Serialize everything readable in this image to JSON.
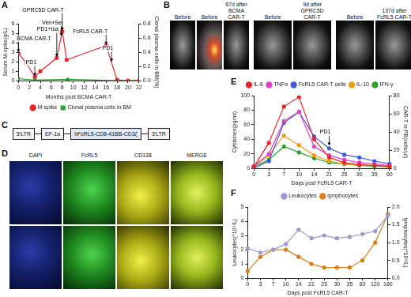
{
  "chart_data": [
    {
      "type": "line",
      "title": "A",
      "x_label": "Months post BCMA CAR-T",
      "y_label": "Serum M-spike(g/L)",
      "y2_label": "Clonal plasma cells in BM(%)",
      "xlim": [
        0,
        22
      ],
      "xticks": [
        0,
        2,
        4,
        6,
        8,
        10,
        12,
        14,
        16,
        18,
        20,
        22
      ],
      "ylim": [
        0,
        6
      ],
      "yticks": [
        0,
        1,
        2,
        3,
        4,
        5,
        6
      ],
      "y2lim": [
        0,
        0.8
      ],
      "y2ticks": [
        {
          "value": 0,
          "label": "0.0"
        },
        0.2,
        0.4,
        0.6,
        0.8
      ],
      "grid": false,
      "legend": "bottom",
      "series": [
        {
          "name": "M-spike",
          "color": "#e3262f",
          "marker": "circle",
          "line_style": "solid",
          "x": [
            0,
            1.5,
            3,
            4,
            7,
            8,
            8.8,
            16,
            18,
            20,
            22
          ],
          "values": [
            2.9,
            1.8,
            0.4,
            1.0,
            2.4,
            5.2,
            2.2,
            3.7,
            0.1,
            0,
            0
          ]
        },
        {
          "name": "Clonal plasma cells in BM",
          "color": "#2ca02c",
          "marker": "square",
          "line_style": "solid",
          "axis": "y2",
          "x": [
            0,
            3,
            9,
            18,
            20,
            22
          ],
          "values": [
            0.03,
            0.01,
            0.02,
            0,
            0,
            0
          ]
        }
      ],
      "annotations": [
        {
          "text": "BCMA CAR-T",
          "x": 0,
          "y": 2.9
        },
        {
          "text": "PD1",
          "x": 3,
          "y": 0.4
        },
        {
          "text": "PD1+Isa",
          "x": 7,
          "y": 2.4
        },
        {
          "text": "Ven+Sel",
          "x": 7.8,
          "y": 4.6
        },
        {
          "text": "GPRC5D CAR-T",
          "x": 8,
          "y": 5.2
        },
        {
          "text": "FcRL5 CAR-T",
          "x": 16,
          "y": 3.7
        },
        {
          "text": "PD1",
          "x": 17,
          "y": 1.9
        }
      ]
    },
    {
      "type": "line",
      "title": "E",
      "x_label": "Days post FcRL5 CAR-T",
      "y_label": "Cytokines(pg/ml)",
      "y2_label": "CAR-T in PB(cells/μl)",
      "categories": [
        0,
        3,
        7,
        10,
        14,
        21,
        25,
        30,
        35,
        60
      ],
      "ylim": [
        0,
        100
      ],
      "yticks": [
        0,
        20,
        40,
        60,
        80,
        100
      ],
      "y2lim": [
        0,
        80
      ],
      "y2ticks": [
        0,
        20,
        40,
        60,
        80
      ],
      "grid": false,
      "legend": "top",
      "series": [
        {
          "name": "IL-6",
          "color": "#e8262a",
          "marker": "circle",
          "line_style": "solid",
          "values": [
            2,
            35,
            85,
            98,
            40,
            15,
            8,
            5,
            4,
            3
          ]
        },
        {
          "name": "TNFα",
          "color": "#e040c8",
          "marker": "circle",
          "line_style": "solid",
          "values": [
            3,
            20,
            65,
            78,
            30,
            18,
            12,
            8,
            6,
            4
          ]
        },
        {
          "name": "FcRL5 CAR-T cells",
          "color": "#3a5bd9",
          "marker": "circle",
          "line_style": "solid",
          "axis": "y2",
          "values": [
            0,
            8,
            50,
            62,
            35,
            22,
            15,
            12,
            8,
            5
          ]
        },
        {
          "name": "IL-10",
          "color": "#f39c12",
          "marker": "circle",
          "line_style": "solid",
          "values": [
            2,
            18,
            45,
            32,
            18,
            10,
            6,
            5,
            4,
            3
          ]
        },
        {
          "name": "IFN-γ",
          "color": "#2e9e2e",
          "marker": "circle",
          "line_style": "solid",
          "values": [
            2,
            12,
            30,
            22,
            14,
            8,
            6,
            4,
            3,
            2
          ]
        }
      ],
      "annotations": [
        {
          "text": "PD1",
          "x": 21,
          "y": 30
        }
      ]
    },
    {
      "type": "line",
      "title": "F",
      "x_label": "Days post FcRL5 CAR-T",
      "y_label": "Leukocytes(*10⁹/L)",
      "y2_label": "lymphocytes(*10⁹/L)",
      "categories": [
        0,
        3,
        7,
        10,
        14,
        21,
        25,
        30,
        35,
        60,
        120,
        180
      ],
      "ylim": [
        0,
        5
      ],
      "yticks": [
        0,
        1,
        2,
        3,
        4,
        5
      ],
      "y2lim": [
        0,
        2
      ],
      "y2ticks": [
        {
          "value": 0,
          "label": "0.0"
        },
        0.5,
        {
          "value": 1,
          "label": "1.0"
        },
        1.5,
        {
          "value": 2,
          "label": "2.0"
        }
      ],
      "grid": false,
      "legend": "top",
      "series": [
        {
          "name": "Leukocytes",
          "color": "#9a9ad0",
          "marker": "circle",
          "line_style": "solid",
          "values": [
            2.1,
            1.8,
            2.0,
            2.4,
            3.4,
            2.8,
            3.0,
            2.8,
            2.9,
            3.1,
            3.3,
            4.4
          ]
        },
        {
          "name": "lymphocytes",
          "color": "#d97e1b",
          "marker": "circle",
          "line_style": "solid",
          "axis": "y2",
          "values": [
            0.2,
            0.6,
            0.8,
            0.8,
            0.6,
            0.4,
            0.3,
            0.3,
            0.3,
            0.5,
            1.0,
            1.8
          ]
        }
      ]
    }
  ],
  "images": {
    "title": "B",
    "groups": [
      {
        "labels": [
          "Before",
          "Before",
          "67d after BCMA CAR-T"
        ]
      },
      {
        "labels": [
          "Before",
          "9d after GPRC5D CAR-T"
        ]
      },
      {
        "labels": [
          "Before",
          "137d after FcRL5 CAR-T"
        ]
      }
    ]
  },
  "construct": {
    "title": "C",
    "segments": [
      "5'LTR",
      "EF-1α",
      "hFcRL5-CD8-41BB-CD3ζ",
      "3'LTR"
    ]
  },
  "staining": {
    "title": "D",
    "columns": [
      "DAPI",
      "FcRL5",
      "CD138",
      "MERGE"
    ]
  }
}
